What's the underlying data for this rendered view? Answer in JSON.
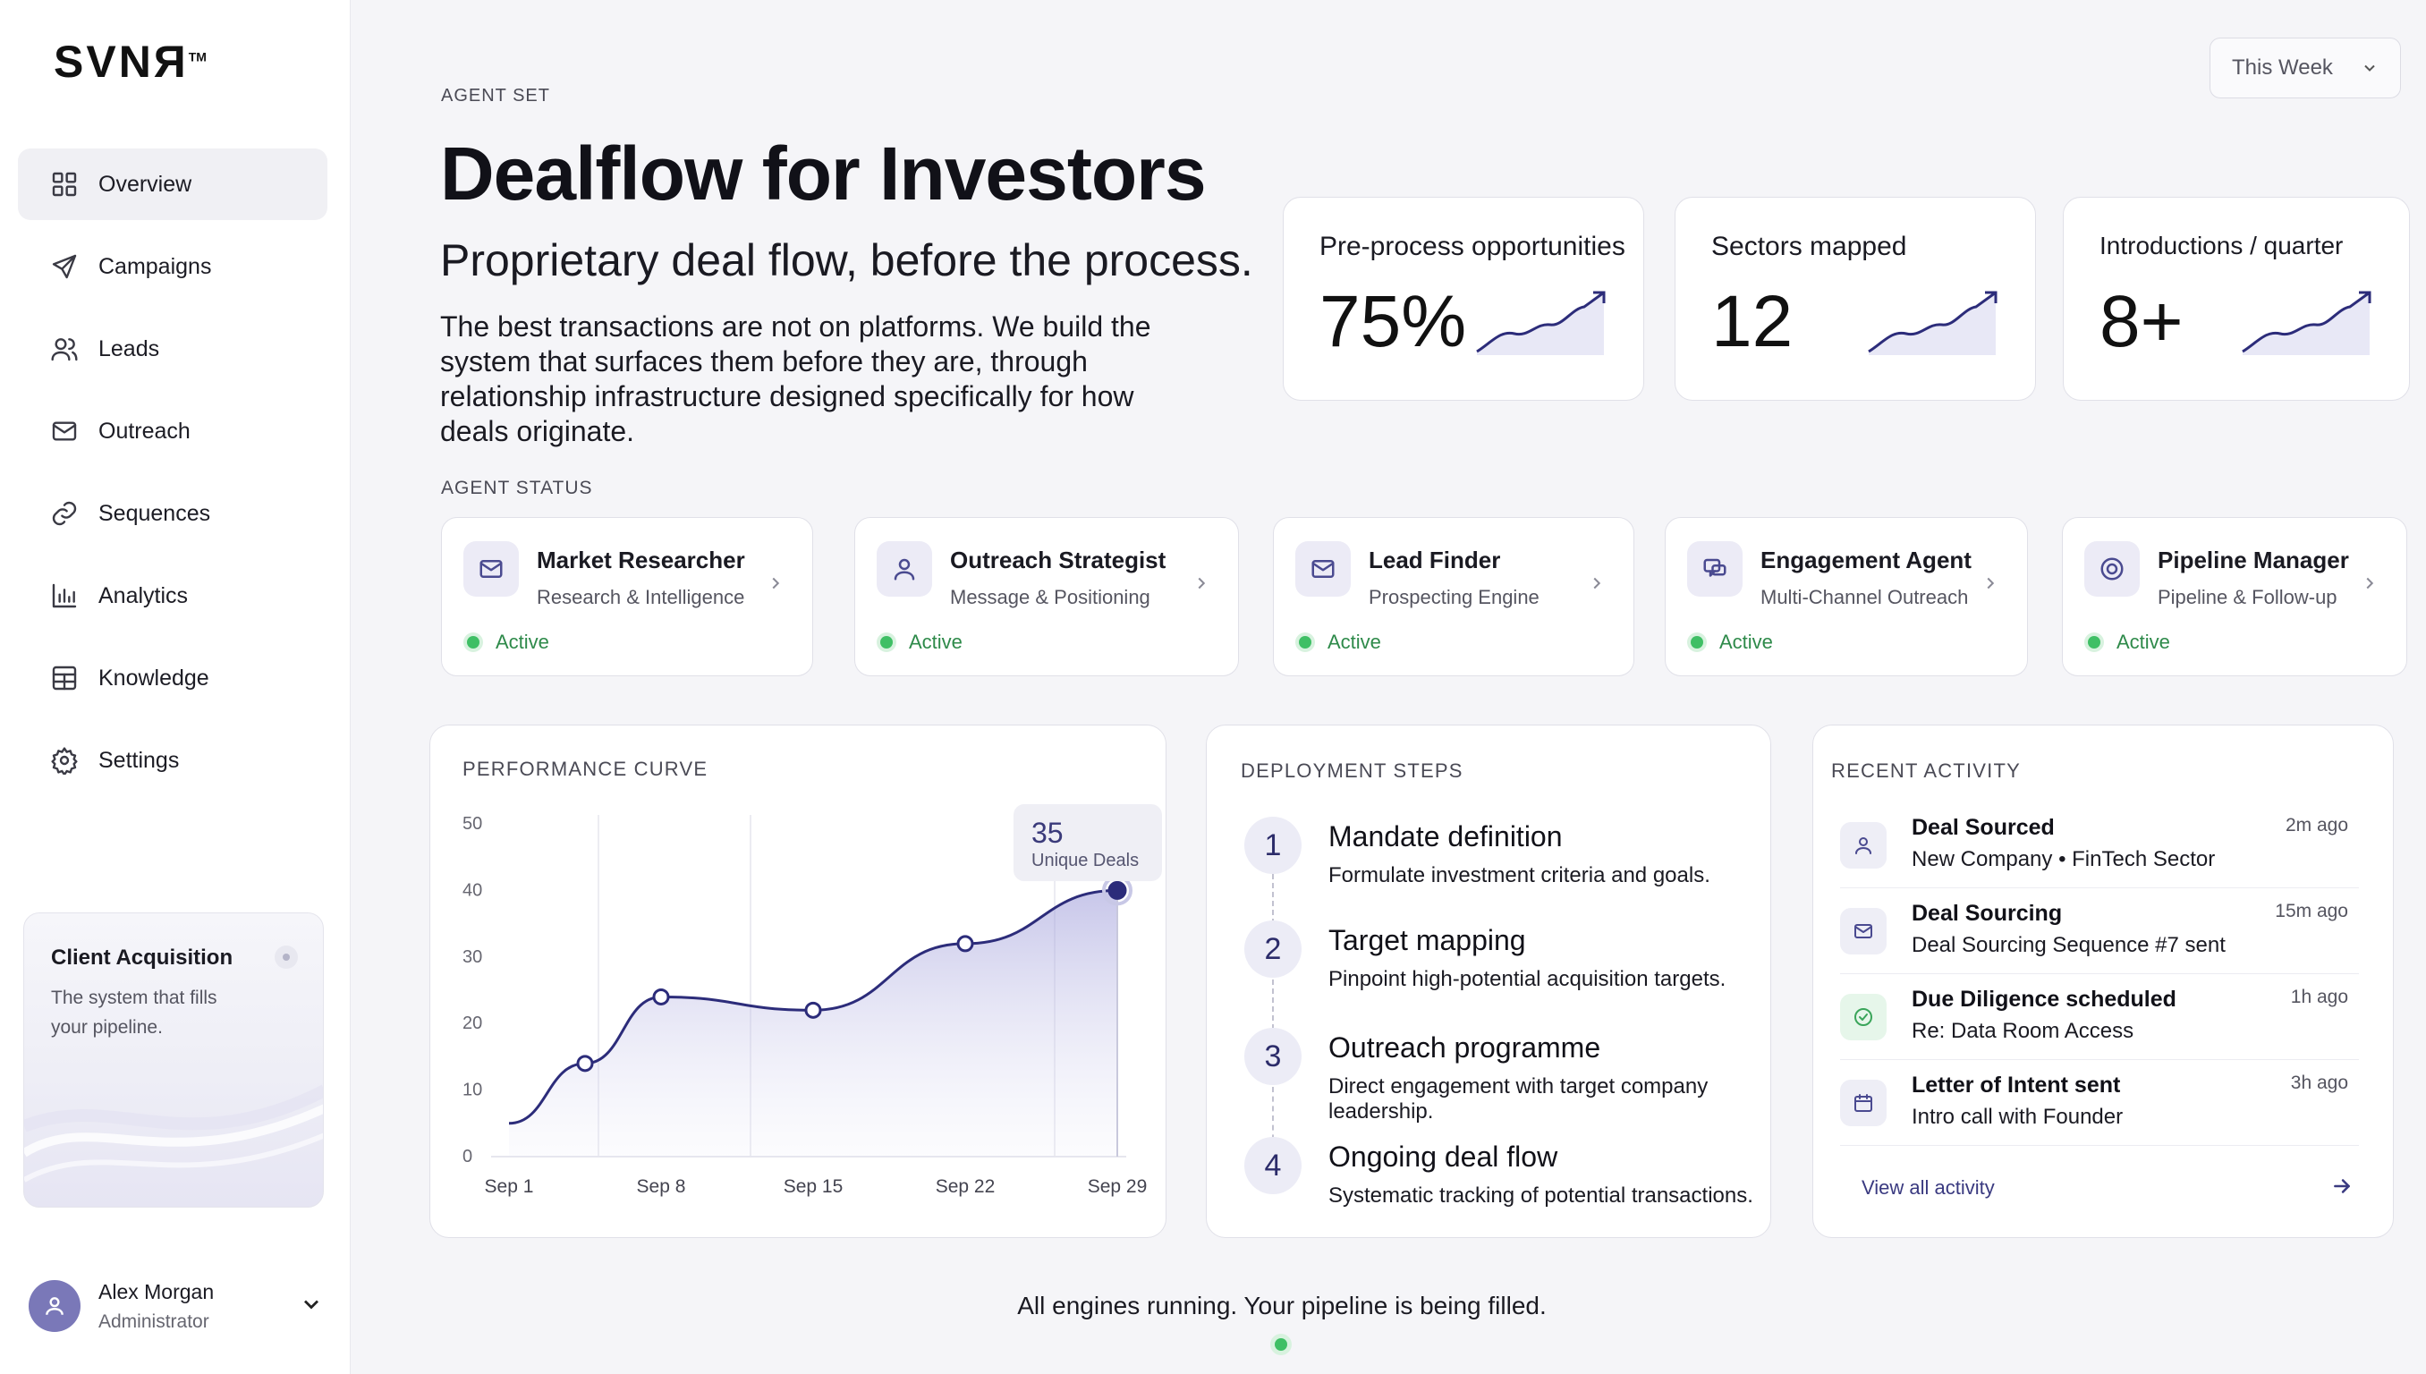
{
  "brand": {
    "name": "SVNЯ",
    "mark": "TM"
  },
  "sidebar": {
    "items": [
      {
        "label": "Overview"
      },
      {
        "label": "Campaigns"
      },
      {
        "label": "Leads"
      },
      {
        "label": "Outreach"
      },
      {
        "label": "Sequences"
      },
      {
        "label": "Analytics"
      },
      {
        "label": "Knowledge"
      },
      {
        "label": "Settings"
      }
    ],
    "promo": {
      "title": "Client Acquisition",
      "text": "The system that fills your pipeline."
    },
    "user": {
      "name": "Alex Morgan",
      "role": "Administrator"
    }
  },
  "header": {
    "eyebrow": "AGENT SET",
    "title": "Dealflow for Investors",
    "subtitle": "Proprietary deal flow, before the process.",
    "body": "The best transactions are not on platforms. We build the system that surfaces them before they are, through relationship infrastructure designed specifically for how deals originate.",
    "period": "This Week"
  },
  "stats": [
    {
      "label": "Pre-process opportunities",
      "value": "75%"
    },
    {
      "label": "Sectors mapped",
      "value": "12"
    },
    {
      "label": "Introductions / quarter",
      "value": "8+"
    }
  ],
  "agent_status": {
    "title": "AGENT STATUS",
    "agents": [
      {
        "name": "Market Researcher",
        "role": "Research & Intelligence",
        "status": "Active",
        "icon": "mail-icon"
      },
      {
        "name": "Outreach Strategist",
        "role": "Message & Positioning",
        "status": "Active",
        "icon": "user-icon"
      },
      {
        "name": "Lead Finder",
        "role": "Prospecting Engine",
        "status": "Active",
        "icon": "mail-icon"
      },
      {
        "name": "Engagement Agent",
        "role": "Multi-Channel Outreach",
        "status": "Active",
        "icon": "chat-icon"
      },
      {
        "name": "Pipeline Manager",
        "role": "Pipeline & Follow-up",
        "status": "Active",
        "icon": "target-icon"
      }
    ]
  },
  "performance": {
    "title": "PERFORMANCE CURVE",
    "tooltip": {
      "value": "35",
      "label": "Unique Deals"
    }
  },
  "chart_data": {
    "type": "area",
    "title": "PERFORMANCE CURVE",
    "x": [
      "Sep 1",
      "Sep 8",
      "Sep 15",
      "Sep 22",
      "Sep 29"
    ],
    "points": [
      {
        "x": 0.0,
        "y": 5
      },
      {
        "x": 0.5,
        "y": 14
      },
      {
        "x": 1.0,
        "y": 24
      },
      {
        "x": 2.0,
        "y": 22
      },
      {
        "x": 3.0,
        "y": 32
      },
      {
        "x": 4.0,
        "y": 40
      }
    ],
    "markers": [
      0.5,
      1.0,
      2.0,
      3.0,
      4.0
    ],
    "yticks": [
      0,
      10,
      20,
      30,
      40,
      50
    ],
    "ylim": [
      0,
      50
    ],
    "grid": true,
    "color": "#2c2c7a"
  },
  "deployment": {
    "title": "DEPLOYMENT STEPS",
    "steps": [
      {
        "num": "1",
        "title": "Mandate definition",
        "desc": "Formulate investment criteria and goals."
      },
      {
        "num": "2",
        "title": "Target mapping",
        "desc": "Pinpoint high-potential acquisition targets."
      },
      {
        "num": "3",
        "title": "Outreach programme",
        "desc": "Direct engagement with target company leadership."
      },
      {
        "num": "4",
        "title": "Ongoing deal flow",
        "desc": "Systematic tracking of potential transactions."
      }
    ]
  },
  "activity": {
    "title": "RECENT ACTIVITY",
    "items": [
      {
        "title": "Deal Sourced",
        "sub": "New Company • FinTech Sector",
        "time": "2m ago",
        "icon": "user-icon"
      },
      {
        "title": "Deal Sourcing",
        "sub": "Deal Sourcing Sequence #7 sent",
        "time": "15m ago",
        "icon": "mail-icon"
      },
      {
        "title": "Due Diligence scheduled",
        "sub": "Re: Data Room Access",
        "time": "1h ago",
        "icon": "check-circle-icon"
      },
      {
        "title": "Letter of Intent sent",
        "sub": "Intro call with Founder",
        "time": "3h ago",
        "icon": "calendar-icon"
      }
    ],
    "view_all": "View all activity"
  },
  "footer": {
    "text": "All engines running. Your pipeline is being filled."
  },
  "colors": {
    "accent": "#2c2c7a",
    "active": "#3fbf65",
    "background": "#f5f5f8"
  }
}
